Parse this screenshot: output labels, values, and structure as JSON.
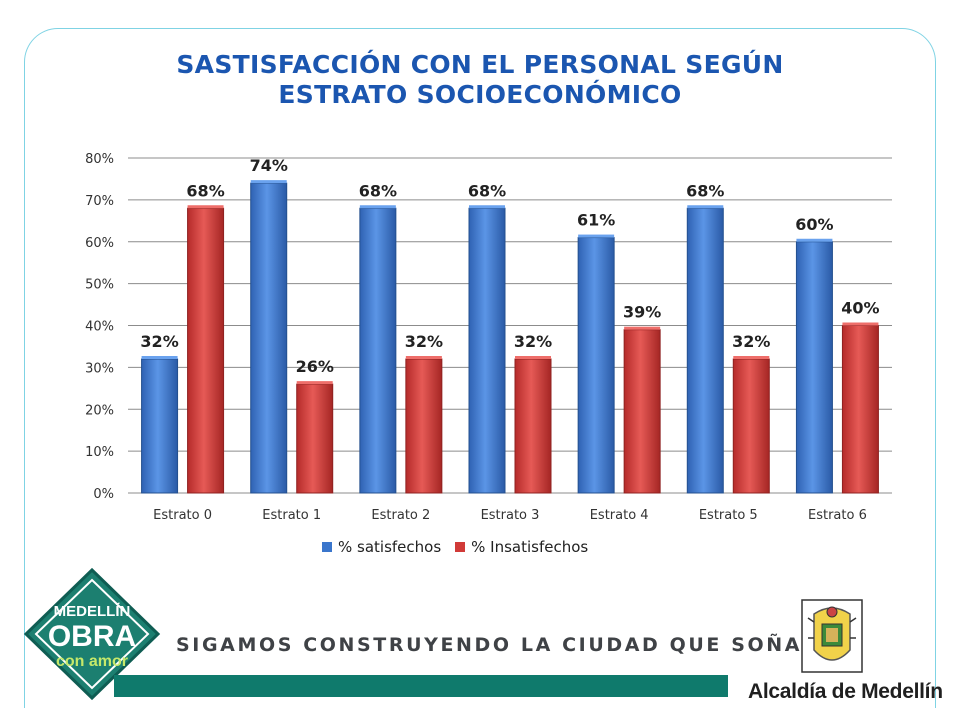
{
  "slide": {
    "title_line1": "SASTISFACCIÓN CON EL PERSONAL SEGÚN",
    "title_line2": "ESTRATO SOCIOECONÓMICO",
    "slogan": "SIGAMOS CONSTRUYENDO LA CIUDAD QUE SOÑAMOS",
    "logo_text": "MEDELLÍN OBRA con amor",
    "organization": "Alcaldía de Medellín"
  },
  "colors": {
    "title": "#1b56b0",
    "satisfied": "#3a76cc",
    "unsatisfied": "#d13a38",
    "brand_green": "#0f7a6c",
    "frame": "#7fd3e4"
  },
  "chart_data": {
    "type": "bar",
    "title": "SASTISFACCIÓN CON EL PERSONAL SEGÚN ESTRATO SOCIOECONÓMICO",
    "categories": [
      "Estrato 0",
      "Estrato 1",
      "Estrato 2",
      "Estrato 3",
      "Estrato 4",
      "Estrato 5",
      "Estrato 6"
    ],
    "series": [
      {
        "name": "% satisfechos",
        "values": [
          32,
          74,
          68,
          68,
          61,
          68,
          60
        ],
        "labels": [
          "32%",
          "74%",
          "68%",
          "68%",
          "61%",
          "68%",
          "60%"
        ]
      },
      {
        "name": "% Insatisfechos",
        "values": [
          68,
          26,
          32,
          32,
          39,
          32,
          40
        ],
        "labels": [
          "68%",
          "26%",
          "32%",
          "32%",
          "39%",
          "32%",
          "40%"
        ]
      }
    ],
    "ylim": [
      0,
      80
    ],
    "yticks": [
      0,
      10,
      20,
      30,
      40,
      50,
      60,
      70,
      80
    ],
    "ytick_labels": [
      "0%",
      "10%",
      "20%",
      "30%",
      "40%",
      "50%",
      "60%",
      "70%",
      "80%"
    ],
    "grid": true,
    "legend_position": "bottom"
  }
}
